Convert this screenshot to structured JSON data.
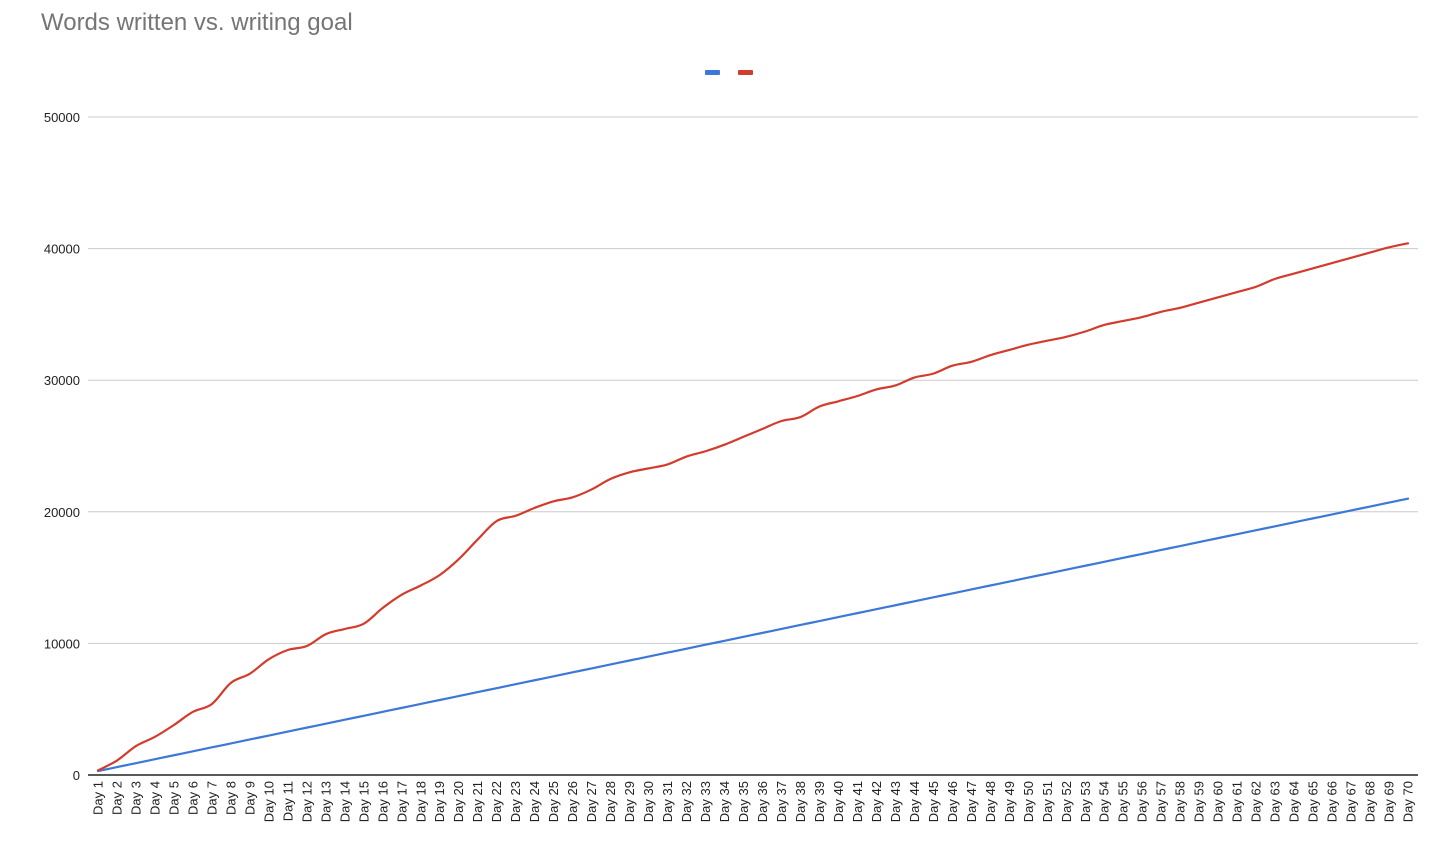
{
  "chart_data": {
    "type": "line",
    "title": "Words written vs. writing goal",
    "xlabel": "",
    "ylabel": "",
    "ylim": [
      0,
      50000
    ],
    "yticks": [
      0,
      10000,
      20000,
      30000,
      40000,
      50000
    ],
    "grid": true,
    "legend": "top-center",
    "categories": [
      "Day 1",
      "Day 2",
      "Day 3",
      "Day 4",
      "Day 5",
      "Day 6",
      "Day 7",
      "Day 8",
      "Day 9",
      "Day 10",
      "Day 11",
      "Day 12",
      "Day 13",
      "Day 14",
      "Day 15",
      "Day 16",
      "Day 17",
      "Day 18",
      "Day 19",
      "Day 20",
      "Day 21",
      "Day 22",
      "Day 23",
      "Day 24",
      "Day 25",
      "Day 26",
      "Day 27",
      "Day 28",
      "Day 29",
      "Day 30",
      "Day 31",
      "Day 32",
      "Day 33",
      "Day 34",
      "Day 35",
      "Day 36",
      "Day 37",
      "Day 38",
      "Day 39",
      "Day 40",
      "Day 41",
      "Day 42",
      "Day 43",
      "Day 44",
      "Day 45",
      "Day 46",
      "Day 47",
      "Day 48",
      "Day 49",
      "Day 50",
      "Day 51",
      "Day 52",
      "Day 53",
      "Day 54",
      "Day 55",
      "Day 56",
      "Day 57",
      "Day 58",
      "Day 59",
      "Day 60",
      "Day 61",
      "Day 62",
      "Day 63",
      "Day 64",
      "Day 65",
      "Day 66",
      "Day 67",
      "Day 68",
      "Day 69",
      "Day 70"
    ],
    "series": [
      {
        "color": "#3b78d8",
        "values": [
          300,
          600,
          900,
          1200,
          1500,
          1800,
          2100,
          2400,
          2700,
          3000,
          3300,
          3600,
          3900,
          4200,
          4500,
          4800,
          5100,
          5400,
          5700,
          6000,
          6300,
          6600,
          6900,
          7200,
          7500,
          7800,
          8100,
          8400,
          8700,
          9000,
          9300,
          9600,
          9900,
          10200,
          10500,
          10800,
          11100,
          11400,
          11700,
          12000,
          12300,
          12600,
          12900,
          13200,
          13500,
          13800,
          14100,
          14400,
          14700,
          15000,
          15300,
          15600,
          15900,
          16200,
          16500,
          16800,
          17100,
          17400,
          17700,
          18000,
          18300,
          18600,
          18900,
          19200,
          19500,
          19800,
          20100,
          20400,
          20700,
          21000
        ]
      },
      {
        "color": "#d33b2c",
        "values": [
          350,
          1100,
          2200,
          2900,
          3800,
          4800,
          5400,
          7000,
          7700,
          8800,
          9500,
          9800,
          10700,
          11100,
          11500,
          12700,
          13700,
          14400,
          15200,
          16400,
          17900,
          19300,
          19700,
          20300,
          20800,
          21100,
          21700,
          22500,
          23000,
          23300,
          23600,
          24200,
          24600,
          25100,
          25700,
          26300,
          26900,
          27200,
          28000,
          28400,
          28800,
          29300,
          29600,
          30200,
          30500,
          31100,
          31400,
          31900,
          32300,
          32700,
          33000,
          33300,
          33700,
          34200,
          34500,
          34800,
          35200,
          35500,
          35900,
          36300,
          36700,
          37100,
          37700,
          38100,
          38500,
          38900,
          39300,
          39700,
          40100,
          40400
        ]
      }
    ]
  }
}
